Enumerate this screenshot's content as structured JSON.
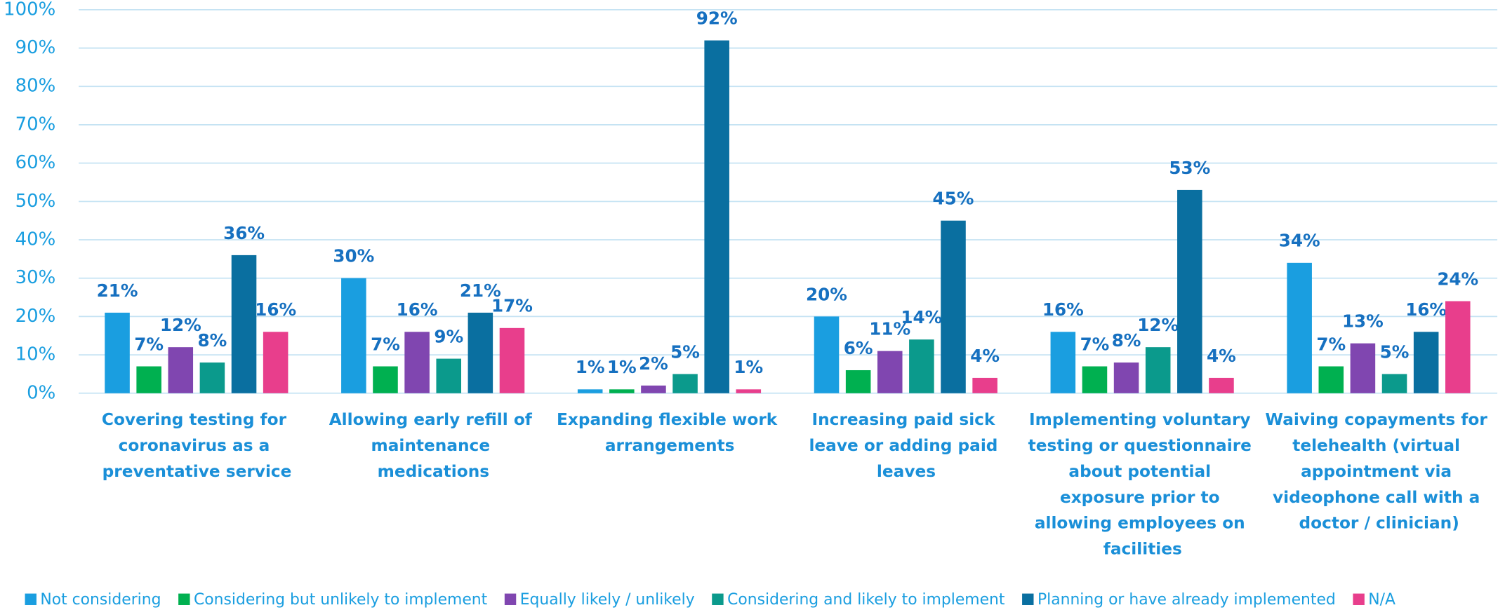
{
  "chart_data": {
    "type": "bar",
    "categories": [
      "Covering testing for coronavirus as a preventative service",
      "Allowing early refill of maintenance medications",
      "Expanding flexible work arrangements",
      "Increasing paid sick leave or adding paid leaves",
      "Implementing voluntary testing or questionnaire about potential exposure prior to allowing employees on facilities",
      "Waiving copayments for telehealth (virtual appointment via videophone call with a doctor / clinician)"
    ],
    "series": [
      {
        "name": "Not considering",
        "color": "#1a9ee0",
        "values": [
          21,
          30,
          1,
          20,
          16,
          34
        ],
        "value_labels": [
          "21%",
          "30%",
          "1%",
          "20%",
          "16%",
          "34%"
        ]
      },
      {
        "name": "Considering but unlikely to implement",
        "color": "#00b050",
        "values": [
          7,
          7,
          1,
          6,
          7,
          7
        ],
        "value_labels": [
          "7%",
          "7%",
          "1%",
          "6%",
          "7%",
          "7%"
        ]
      },
      {
        "name": "Equally likely / unlikely",
        "color": "#8046b0",
        "values": [
          12,
          16,
          2,
          11,
          8,
          13
        ],
        "value_labels": [
          "12%",
          "16%",
          "2%",
          "11%",
          "8%",
          "13%"
        ]
      },
      {
        "name": "Considering and likely to implement",
        "color": "#0b9a8c",
        "values": [
          8,
          9,
          5,
          14,
          12,
          5
        ],
        "value_labels": [
          "8%",
          "9%",
          "5%",
          "14%",
          "12%",
          "5%"
        ]
      },
      {
        "name": "Planning or have already implemented",
        "color": "#0a6fa0",
        "values": [
          36,
          21,
          92,
          45,
          53,
          16
        ],
        "value_labels": [
          "36%",
          "21%",
          "92%",
          "45%",
          "53%",
          "16%"
        ]
      },
      {
        "name": "N/A",
        "color": "#e83e8c",
        "values": [
          16,
          17,
          1,
          4,
          4,
          24
        ],
        "value_labels": [
          "16%",
          "17%",
          "1%",
          "4%",
          "4%",
          "24%"
        ]
      }
    ],
    "ylim": [
      0,
      100
    ],
    "yticks": [
      {
        "value": 0,
        "label": "0%"
      },
      {
        "value": 10,
        "label": "10%"
      },
      {
        "value": 20,
        "label": "20%"
      },
      {
        "value": 30,
        "label": "30%"
      },
      {
        "value": 40,
        "label": "40%"
      },
      {
        "value": 50,
        "label": "50%"
      },
      {
        "value": 60,
        "label": "60%"
      },
      {
        "value": 70,
        "label": "70%"
      },
      {
        "value": 80,
        "label": "80%"
      },
      {
        "value": 90,
        "label": "90%"
      },
      {
        "value": 100,
        "label": "100%"
      }
    ],
    "grid": true,
    "legend": "bottom"
  }
}
